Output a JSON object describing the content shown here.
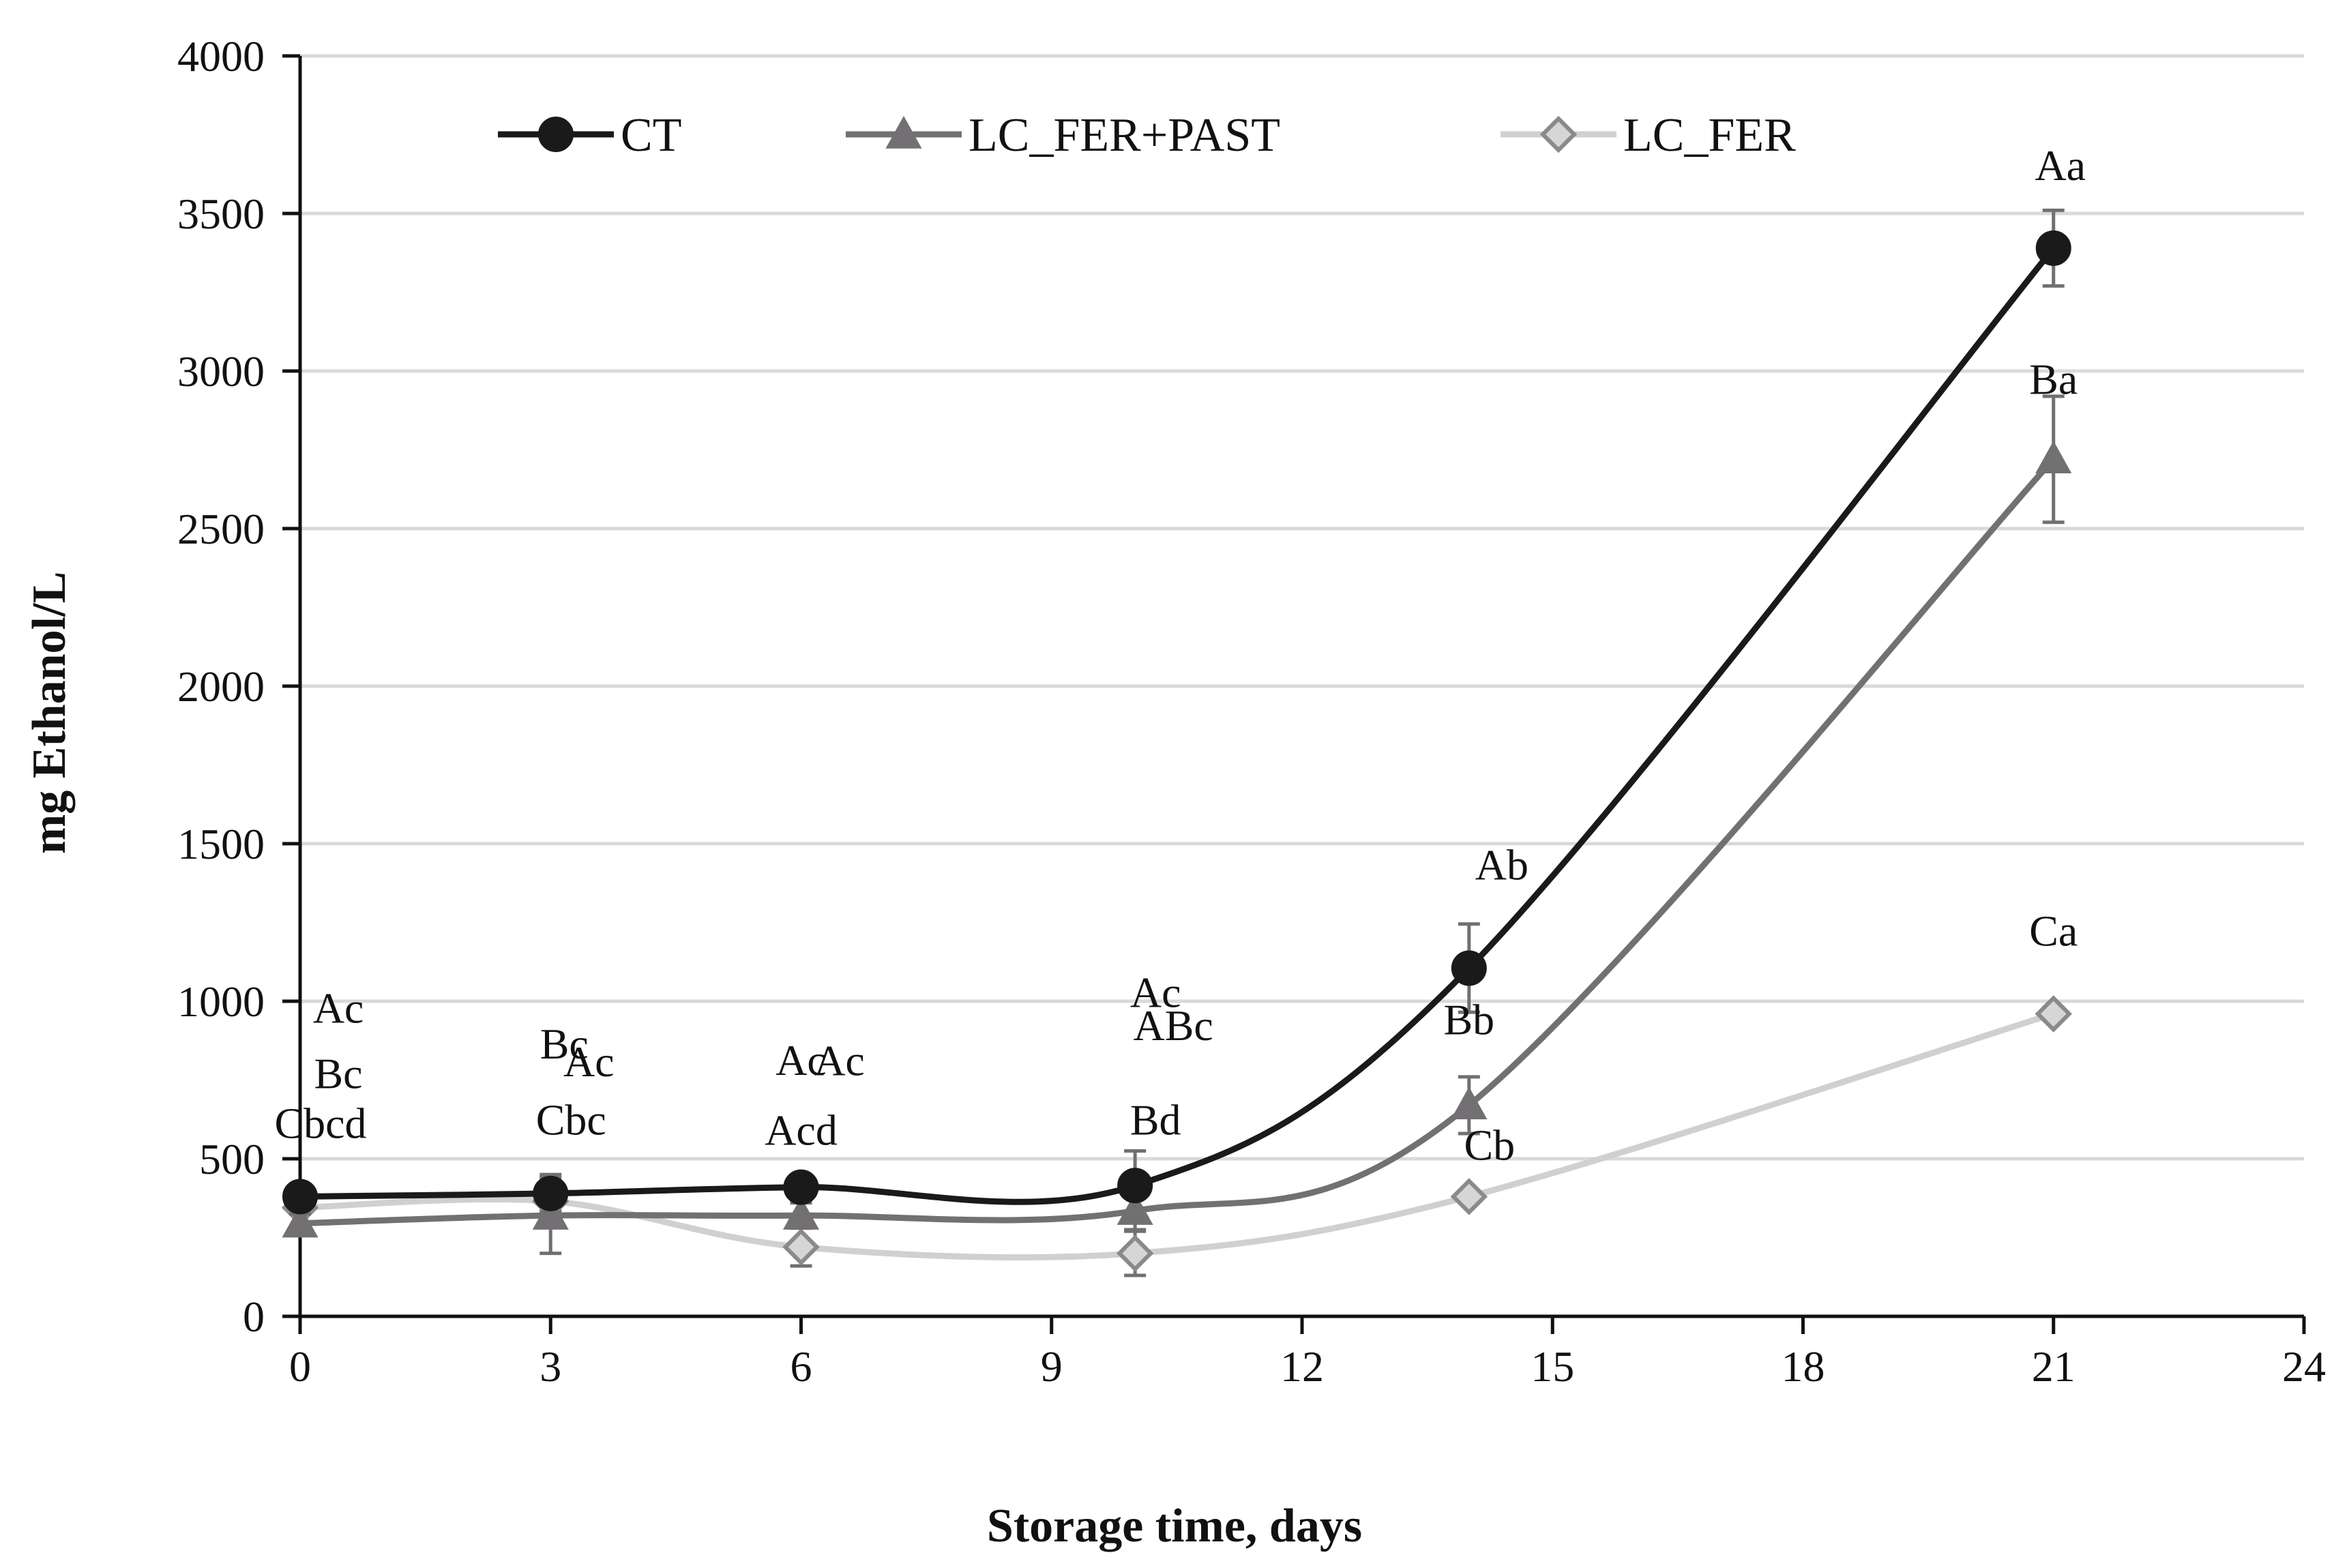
{
  "chart_data": {
    "type": "line",
    "title": "",
    "xlabel": "Storage time, days",
    "ylabel": "mg Ethanol/L",
    "xlim": [
      0,
      24
    ],
    "ylim": [
      0,
      4000
    ],
    "xticks": [
      0,
      3,
      6,
      9,
      12,
      15,
      18,
      21,
      24
    ],
    "yticks": [
      0,
      500,
      1000,
      1500,
      2000,
      2500,
      3000,
      3500,
      4000
    ],
    "grid": "horizontal",
    "legend_position": "top",
    "series": [
      {
        "name": "CT",
        "marker": "circle",
        "color": "#1a1a1a",
        "marker_fill": "#1a1a1a",
        "x": [
          0,
          3,
          6,
          10,
          14,
          21
        ],
        "values": [
          380,
          390,
          410,
          415,
          1105,
          3390
        ],
        "errors": [
          30,
          60,
          30,
          110,
          140,
          120
        ],
        "labels": [
          "Ac",
          "Ac",
          "Ac",
          "Ac",
          "Ab",
          "Aa"
        ]
      },
      {
        "name": "LC_FER+PAST",
        "marker": "triangle",
        "color": "#737073",
        "marker_fill": "#737073",
        "x": [
          0,
          3,
          6,
          10,
          14,
          21
        ],
        "values": [
          295,
          320,
          320,
          335,
          670,
          2720
        ],
        "errors": [
          30,
          120,
          40,
          60,
          90,
          200
        ],
        "labels": [
          "Bc",
          "Bc",
          "Ac",
          "ABc",
          "Bb",
          "Ba"
        ]
      },
      {
        "name": "LC_FER",
        "marker": "diamond",
        "color": "#d0d0d0",
        "marker_fill": "#d6d6d6",
        "x": [
          0,
          3,
          6,
          10,
          14,
          21
        ],
        "values": [
          345,
          365,
          220,
          200,
          380,
          960
        ],
        "errors": [
          20,
          30,
          60,
          70,
          20,
          20
        ],
        "labels": [
          "Cbcd",
          "Cbc",
          "Acd",
          "Bd",
          "Cb",
          "Ca"
        ]
      }
    ]
  }
}
